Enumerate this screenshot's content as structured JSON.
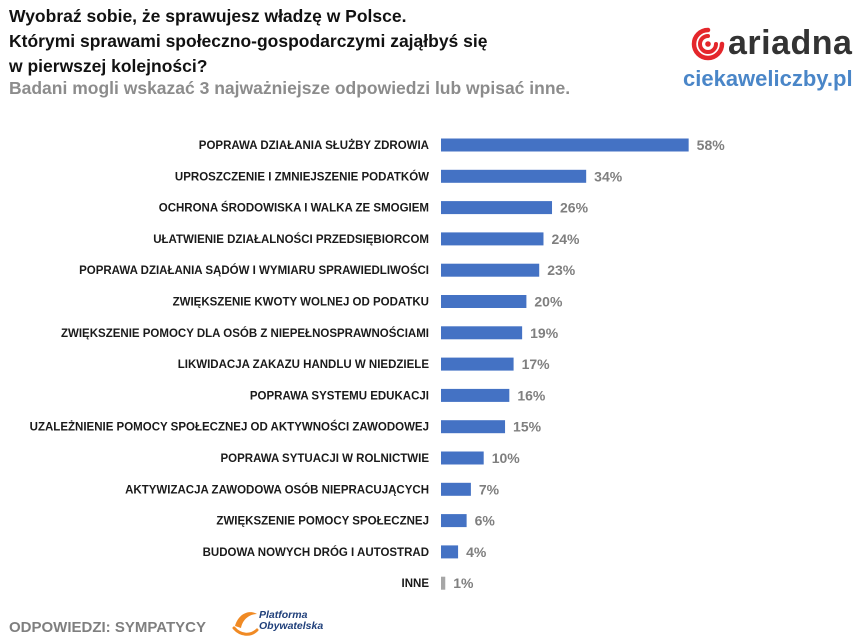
{
  "header": {
    "title_lines": [
      "Wyobraź sobie, że sprawujesz władzę w Polsce.",
      "Którymi sprawami społeczno-gospodarczymi zająłbyś się",
      "w pierwszej kolejności?"
    ],
    "subtitle": "Badani mogli wskazać 3 najważniejsze odpowiedzi lub wpisać inne."
  },
  "branding": {
    "ariadna_logo_text": "ariadna",
    "site_text": "ciekaweliczby.pl",
    "party_logo_text_line1": "Platforma",
    "party_logo_text_line2": "Obywatelska",
    "colors": {
      "ariadna_red": "#e4262b",
      "site_blue": "#4a86c8",
      "party_orange": "#f08a24",
      "party_navy": "#1f3f7a"
    }
  },
  "footer": {
    "label": "ODPOWIEDZI: SYMPATYCY"
  },
  "chart_data": {
    "type": "bar",
    "orientation": "horizontal",
    "categories": [
      "POPRAWA DZIAŁANIA SŁUŻBY ZDROWIA",
      "UPROSZCZENIE I ZMNIEJSZENIE PODATKÓW",
      "OCHRONA ŚRODOWISKA I WALKA ZE SMOGIEM",
      "UŁATWIENIE DZIAŁALNOŚCI PRZEDSIĘBIORCOM",
      "POPRAWA DZIAŁANIA SĄDÓW I WYMIARU SPRAWIEDLIWOŚCI",
      "ZWIĘKSZENIE KWOTY WOLNEJ OD PODATKU",
      "ZWIĘKSZENIE POMOCY DLA OSÓB Z NIEPEŁNOSPRAWNOŚCIAMI",
      "LIKWIDACJA ZAKAZU HANDLU W NIEDZIELE",
      "POPRAWA SYSTEMU EDUKACJI",
      "UZALEŻNIENIE POMOCY SPOŁECZNEJ OD AKTYWNOŚCI ZAWODOWEJ",
      "POPRAWA SYTUACJI W ROLNICTWIE",
      "AKTYWIZACJA ZAWODOWA OSÓB NIEPRACUJĄCYCH",
      "ZWIĘKSZENIE POMOCY SPOŁECZNEJ",
      "BUDOWA NOWYCH DRÓG I AUTOSTRAD",
      "INNE"
    ],
    "values": [
      58,
      34,
      26,
      24,
      23,
      20,
      19,
      17,
      16,
      15,
      10,
      7,
      6,
      4,
      1
    ],
    "value_labels": [
      "58%",
      "34%",
      "26%",
      "24%",
      "23%",
      "20%",
      "19%",
      "17%",
      "16%",
      "15%",
      "10%",
      "7%",
      "6%",
      "4%",
      "1%"
    ],
    "unit": "%",
    "xlim": [
      0,
      100
    ],
    "grid": false,
    "legend": "none",
    "colors": {
      "bar": "#4472c4",
      "bar_other": "#a6a6a6",
      "category_text": "#1a1a1a",
      "value_text": "#7f7f7f"
    }
  }
}
